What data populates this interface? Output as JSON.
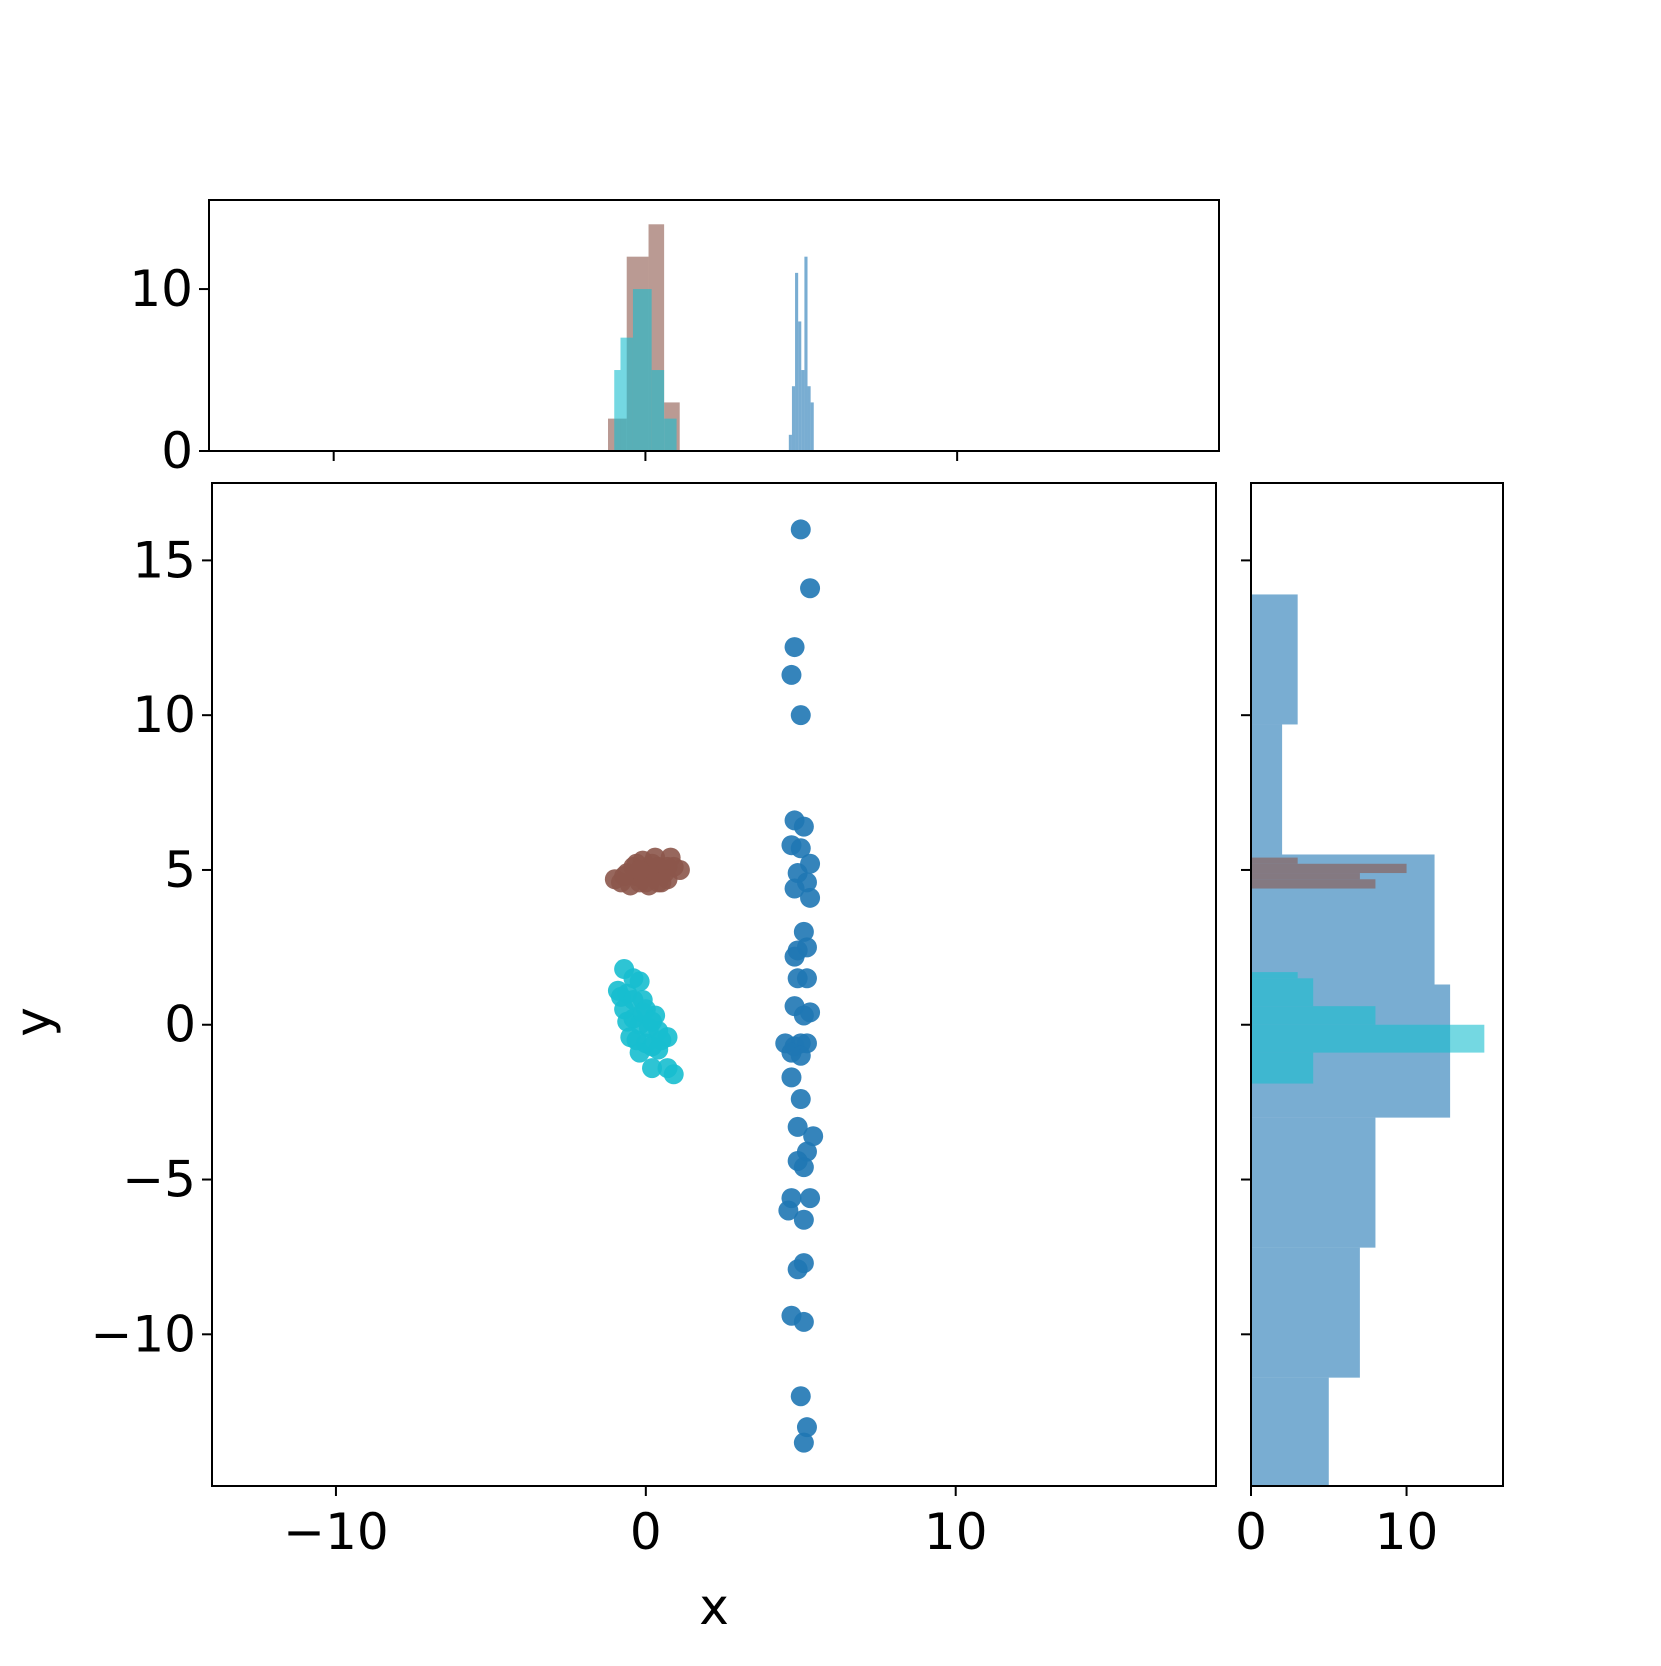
{
  "chart_data": {
    "type": "scatter",
    "kind": "joint-plot-with-marginal-histograms",
    "xlabel": "x",
    "ylabel": "y",
    "xlim": [
      -14,
      18.4
    ],
    "ylim": [
      -14.9,
      17.5
    ],
    "x_ticks": [
      -10,
      0,
      10
    ],
    "y_ticks": [
      -10,
      -5,
      0,
      5,
      10,
      15
    ],
    "tick_labels": {
      "x": [
        "−10",
        "0",
        "10"
      ],
      "y": [
        "−10",
        "−5",
        "0",
        "5",
        "10",
        "15"
      ]
    },
    "grid": false,
    "legend": "none",
    "series": [
      {
        "color": "#1f77b4",
        "points": [
          [
            5.0,
            16.0
          ],
          [
            5.3,
            14.1
          ],
          [
            4.8,
            12.2
          ],
          [
            4.7,
            11.3
          ],
          [
            5.0,
            10.0
          ],
          [
            4.8,
            6.6
          ],
          [
            5.1,
            6.4
          ],
          [
            4.7,
            5.8
          ],
          [
            5.0,
            5.7
          ],
          [
            5.3,
            5.2
          ],
          [
            4.9,
            4.9
          ],
          [
            5.2,
            4.6
          ],
          [
            4.8,
            4.4
          ],
          [
            5.3,
            4.1
          ],
          [
            5.1,
            3.0
          ],
          [
            5.2,
            2.5
          ],
          [
            4.9,
            2.4
          ],
          [
            4.8,
            2.2
          ],
          [
            4.9,
            1.5
          ],
          [
            5.2,
            1.5
          ],
          [
            4.8,
            0.6
          ],
          [
            5.1,
            0.3
          ],
          [
            5.3,
            0.4
          ],
          [
            4.5,
            -0.6
          ],
          [
            4.8,
            -0.7
          ],
          [
            5.0,
            -0.6
          ],
          [
            5.2,
            -0.6
          ],
          [
            4.7,
            -0.9
          ],
          [
            5.0,
            -1.0
          ],
          [
            4.7,
            -1.7
          ],
          [
            5.0,
            -2.4
          ],
          [
            4.9,
            -3.3
          ],
          [
            5.4,
            -3.6
          ],
          [
            5.2,
            -4.1
          ],
          [
            4.9,
            -4.4
          ],
          [
            5.1,
            -4.6
          ],
          [
            4.7,
            -5.6
          ],
          [
            5.3,
            -5.6
          ],
          [
            4.6,
            -6.0
          ],
          [
            5.1,
            -6.3
          ],
          [
            4.9,
            -7.9
          ],
          [
            5.1,
            -7.7
          ],
          [
            4.7,
            -9.4
          ],
          [
            5.1,
            -9.6
          ],
          [
            5.0,
            -12.0
          ],
          [
            5.2,
            -13.0
          ],
          [
            5.1,
            -13.5
          ]
        ],
        "x_hist": [
          [
            4.6,
            1.0
          ],
          [
            4.7,
            4.0
          ],
          [
            4.8,
            11.0
          ],
          [
            4.9,
            8.0
          ],
          [
            5.0,
            5.0
          ],
          [
            5.1,
            12.0
          ],
          [
            5.2,
            4.0
          ],
          [
            5.3,
            3.0
          ]
        ],
        "y_hist": [
          [
            -14.9,
            -11.4,
            5.0
          ],
          [
            -11.4,
            -7.2,
            7.0
          ],
          [
            -7.2,
            -3.0,
            8.0
          ],
          [
            -3.0,
            1.3,
            12.8
          ],
          [
            1.3,
            5.5,
            11.8
          ],
          [
            5.5,
            9.7,
            2.0
          ],
          [
            9.7,
            13.9,
            3.0
          ]
        ]
      },
      {
        "color": "#8c564b",
        "points": [
          [
            -1.0,
            4.7
          ],
          [
            -0.8,
            4.6
          ],
          [
            -0.6,
            4.9
          ],
          [
            -0.5,
            4.5
          ],
          [
            -0.4,
            5.1
          ],
          [
            -0.3,
            4.8
          ],
          [
            -0.2,
            4.6
          ],
          [
            -0.1,
            5.3
          ],
          [
            0.0,
            4.9
          ],
          [
            0.1,
            4.5
          ],
          [
            0.2,
            5.2
          ],
          [
            0.3,
            4.8
          ],
          [
            0.4,
            4.6
          ],
          [
            0.5,
            5.0
          ],
          [
            0.6,
            4.9
          ],
          [
            0.7,
            5.1
          ],
          [
            0.8,
            5.4
          ],
          [
            0.9,
            5.1
          ],
          [
            1.1,
            5.0
          ],
          [
            0.3,
            5.4
          ],
          [
            -0.3,
            5.2
          ],
          [
            0.0,
            4.6
          ],
          [
            0.4,
            5.1
          ],
          [
            -0.7,
            4.8
          ],
          [
            0.7,
            4.7
          ],
          [
            0.1,
            4.9
          ],
          [
            -0.2,
            5.0
          ],
          [
            0.5,
            4.6
          ]
        ],
        "x_hist": [
          [
            -1.2,
            2.0
          ],
          [
            -0.6,
            12.0
          ],
          [
            0.1,
            14.0
          ],
          [
            0.6,
            3.0
          ]
        ],
        "y_hist": [
          [
            5.2,
            5.4,
            3.0
          ],
          [
            4.9,
            5.2,
            10.0
          ],
          [
            4.7,
            4.9,
            7.0
          ],
          [
            4.4,
            4.7,
            8.0
          ]
        ]
      },
      {
        "color": "#17becf",
        "points": [
          [
            -0.7,
            1.8
          ],
          [
            -0.4,
            1.5
          ],
          [
            -0.2,
            1.4
          ],
          [
            -0.9,
            1.1
          ],
          [
            -0.8,
            0.9
          ],
          [
            -0.6,
            1.0
          ],
          [
            -0.4,
            0.8
          ],
          [
            -0.1,
            0.8
          ],
          [
            0.0,
            0.5
          ],
          [
            0.3,
            0.3
          ],
          [
            -0.6,
            0.1
          ],
          [
            -0.4,
            0.2
          ],
          [
            -0.2,
            0.0
          ],
          [
            0.1,
            -0.1
          ],
          [
            0.4,
            -0.2
          ],
          [
            -0.5,
            -0.4
          ],
          [
            -0.3,
            -0.5
          ],
          [
            0.0,
            -0.6
          ],
          [
            0.2,
            -0.7
          ],
          [
            0.4,
            -0.8
          ],
          [
            0.7,
            -0.4
          ],
          [
            -0.2,
            -0.9
          ],
          [
            0.2,
            -1.4
          ],
          [
            0.7,
            -1.4
          ],
          [
            0.9,
            -1.6
          ],
          [
            -0.1,
            0.4
          ],
          [
            0.2,
            0.1
          ],
          [
            0.5,
            -0.5
          ],
          [
            -0.7,
            0.5
          ]
        ],
        "x_hist": [
          [
            -1.0,
            5.0
          ],
          [
            -0.8,
            7.0
          ],
          [
            -0.4,
            10.0
          ],
          [
            0.2,
            5.0
          ],
          [
            0.6,
            2.0
          ]
        ],
        "y_hist": [
          [
            1.5,
            1.7,
            3.0
          ],
          [
            0.6,
            1.5,
            4.0
          ],
          [
            0.0,
            0.6,
            8.0
          ],
          [
            -0.9,
            0.0,
            15.0
          ],
          [
            -1.9,
            -0.9,
            4.0
          ]
        ]
      }
    ],
    "x_marginal": {
      "ylim": [
        0,
        15.5
      ],
      "y_ticks": [
        0,
        10
      ]
    },
    "y_marginal": {
      "xlim": [
        0,
        16.2
      ],
      "x_ticks": [
        0,
        10
      ]
    }
  }
}
